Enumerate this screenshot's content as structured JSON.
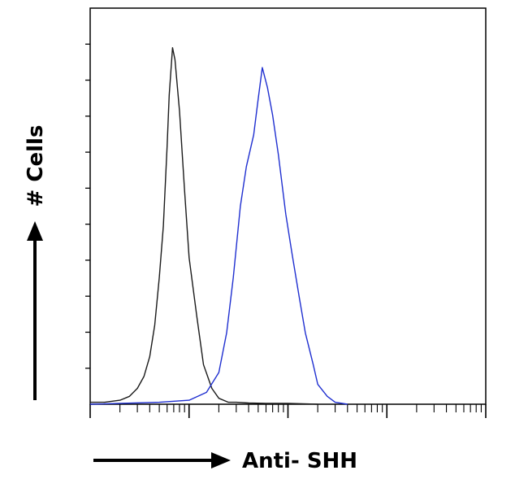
{
  "chart_data": {
    "type": "line",
    "title": "",
    "xlabel": "Anti- SHH",
    "ylabel": "# Cells",
    "xscale": "log",
    "grid": false,
    "legend": "none",
    "xlim": [
      1,
      10000
    ],
    "ylim": [
      0,
      100
    ],
    "series": [
      {
        "color": "#1a1a1a",
        "x": [
          1,
          1.4,
          2,
          2.5,
          3,
          3.5,
          4,
          4.5,
          5,
          5.5,
          6,
          6.3,
          6.8,
          7.2,
          8,
          9,
          10,
          12,
          14,
          17,
          20,
          25,
          30,
          40,
          60,
          100,
          200
        ],
        "y": [
          0.5,
          0.5,
          1,
          2,
          4,
          7,
          12,
          20,
          32,
          45,
          65,
          78,
          90,
          87,
          74,
          54,
          37,
          22,
          10,
          4,
          1.5,
          0.5,
          0.5,
          0.3,
          0.2,
          0.2,
          0
        ]
      },
      {
        "color": "#1f2fd0",
        "x": [
          1,
          5,
          10,
          15,
          20,
          24,
          28,
          33,
          38,
          45,
          50,
          55,
          62,
          70,
          80,
          95,
          110,
          130,
          150,
          180,
          200,
          250,
          300,
          400
        ],
        "y": [
          0,
          0.5,
          1,
          3,
          8,
          18,
          32,
          50,
          60,
          68,
          77,
          85,
          80,
          73,
          63,
          48,
          38,
          27,
          18,
          10,
          5,
          2,
          0.5,
          0
        ]
      }
    ]
  }
}
